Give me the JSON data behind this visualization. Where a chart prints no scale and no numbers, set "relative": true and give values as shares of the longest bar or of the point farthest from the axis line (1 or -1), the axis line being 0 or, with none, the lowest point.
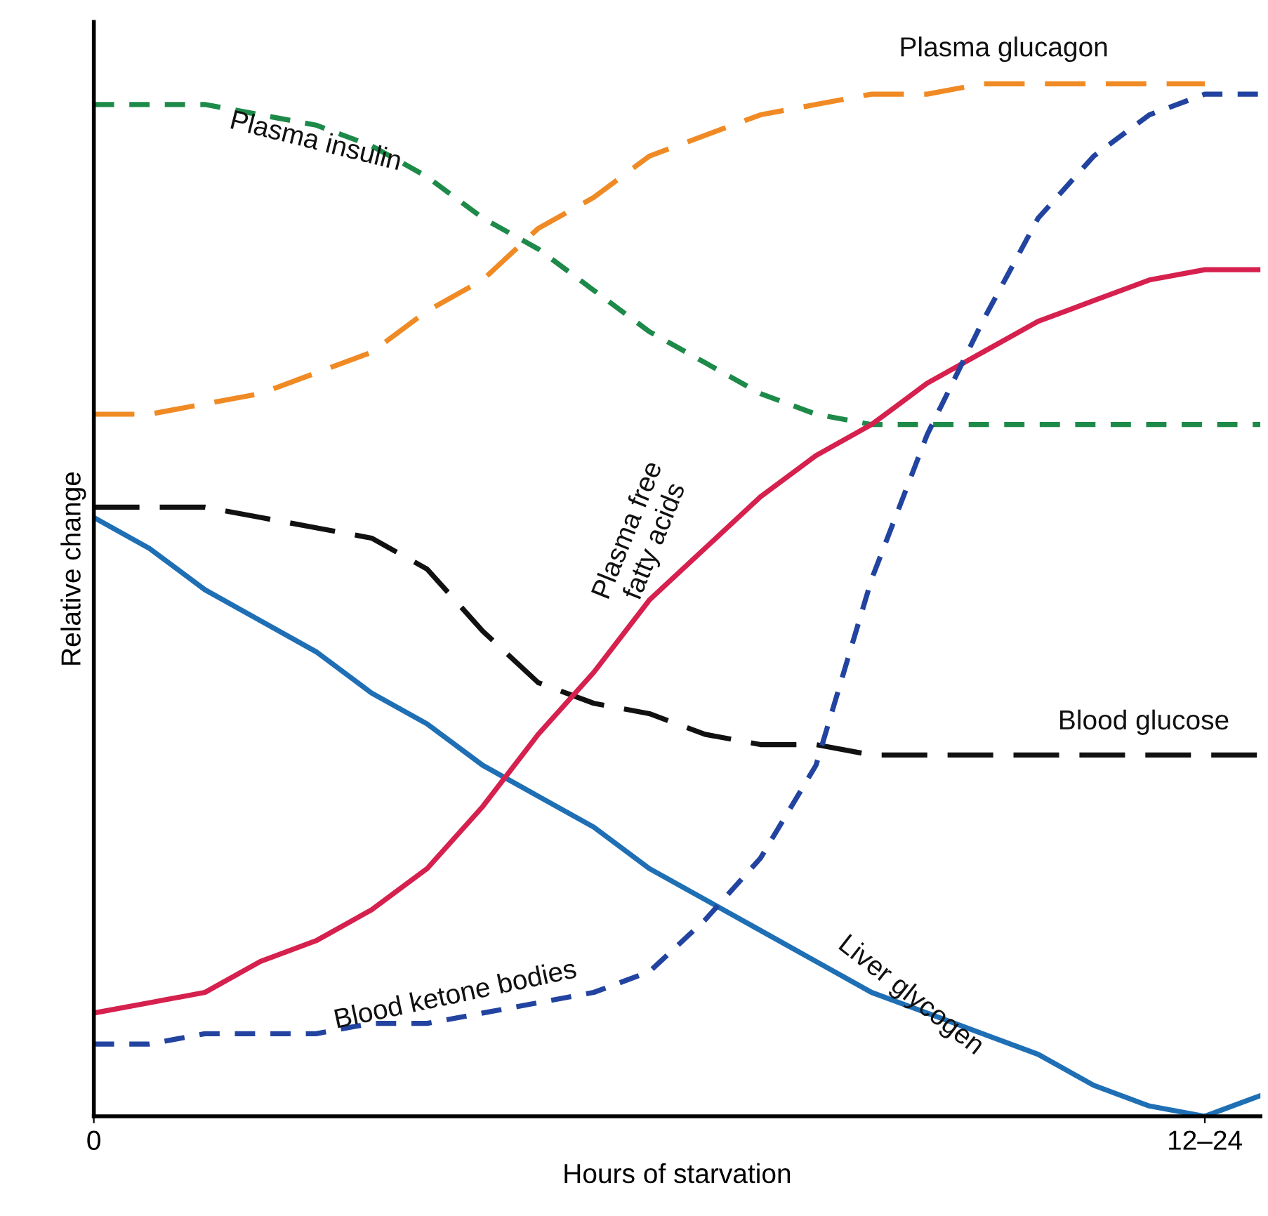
{
  "chart_data": {
    "type": "line",
    "relative": true,
    "xlabel": "Hours of starvation",
    "ylabel": "Relative change",
    "categories": [
      "0",
      null,
      null,
      null,
      null,
      null,
      null,
      null,
      null,
      null,
      null,
      null,
      null,
      null,
      null,
      null,
      null,
      null,
      null,
      null,
      "12–24",
      null
    ],
    "grid": false,
    "legend": false,
    "marker": "none",
    "line_style": "dashed",
    "series": [
      {
        "name": "Plasma glucagon",
        "color": "#f08a24",
        "values": [
          0.68,
          0.68,
          0.69,
          0.7,
          0.72,
          0.74,
          0.78,
          0.81,
          0.86,
          0.89,
          0.93,
          0.95,
          0.97,
          0.98,
          0.99,
          0.99,
          1.0,
          1.0,
          1.0,
          1.0,
          1.0,
          null
        ]
      },
      {
        "name": "Plasma insulin",
        "color": "#1e8a4a",
        "values": [
          0.98,
          0.98,
          0.98,
          0.97,
          0.96,
          0.94,
          0.91,
          0.87,
          0.84,
          0.8,
          0.76,
          0.73,
          0.7,
          0.68,
          0.67,
          0.67,
          0.67,
          0.67,
          0.67,
          0.67,
          0.67,
          0.67
        ]
      },
      {
        "name": "Blood glucose",
        "color": "#111111",
        "values": [
          0.59,
          0.59,
          0.59,
          0.58,
          0.57,
          0.56,
          0.53,
          0.47,
          0.42,
          0.4,
          0.39,
          0.37,
          0.36,
          0.36,
          0.35,
          0.35,
          0.35,
          0.35,
          0.35,
          0.35,
          0.35,
          0.35
        ]
      },
      {
        "name": "Liver glycogen",
        "color": "#1f6fb5",
        "line_style": "solid",
        "values": [
          0.58,
          0.55,
          0.51,
          0.48,
          0.45,
          0.41,
          0.38,
          0.34,
          0.31,
          0.28,
          0.24,
          0.21,
          0.18,
          0.15,
          0.12,
          0.1,
          0.08,
          0.06,
          0.03,
          0.01,
          0.0,
          0.02
        ]
      },
      {
        "name": "Plasma free\nfatty acids",
        "color": "#d6204e",
        "line_style": "solid",
        "values": [
          0.1,
          0.11,
          0.12,
          0.15,
          0.17,
          0.2,
          0.24,
          0.3,
          0.37,
          0.43,
          0.5,
          0.55,
          0.6,
          0.64,
          0.67,
          0.71,
          0.74,
          0.77,
          0.79,
          0.81,
          0.82,
          0.82
        ]
      },
      {
        "name": "Blood ketone bodies",
        "color": "#2244a0",
        "values": [
          0.07,
          0.07,
          0.08,
          0.08,
          0.08,
          0.09,
          0.09,
          0.1,
          0.11,
          0.12,
          0.14,
          0.19,
          0.25,
          0.34,
          0.52,
          0.66,
          0.77,
          0.87,
          0.93,
          0.97,
          0.99,
          0.99
        ]
      }
    ]
  }
}
